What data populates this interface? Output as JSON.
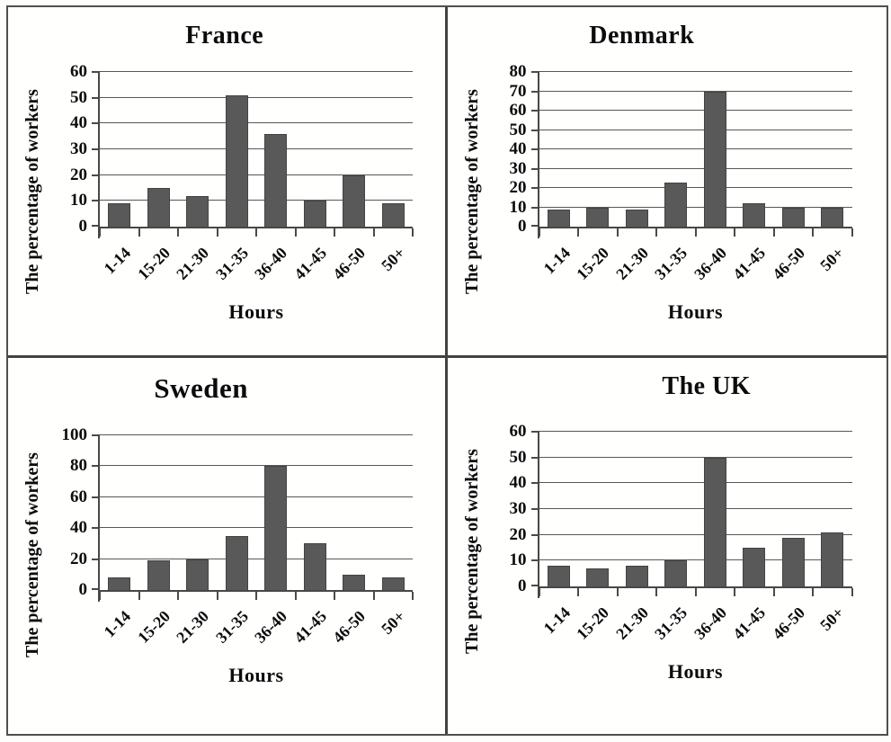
{
  "palette": {
    "bar_color": "#595959",
    "grid_color": "#575757",
    "axis_color": "#474747",
    "frame_color": "#4f4f4f",
    "text_color": "#0c0c0c",
    "background": "#fffffe"
  },
  "chart_data": [
    {
      "type": "bar",
      "title": "France",
      "xlabel": "Hours",
      "ylabel": "The percentage of workers",
      "categories": [
        "1-14",
        "15-20",
        "21-30",
        "31-35",
        "36-40",
        "41-45",
        "46-50",
        "50+"
      ],
      "values": [
        9,
        15,
        12,
        51,
        36,
        10,
        20,
        9
      ],
      "ylim": [
        0,
        60
      ],
      "yticks": [
        0,
        10,
        20,
        30,
        40,
        50,
        60
      ],
      "grid": true,
      "legend": false
    },
    {
      "type": "bar",
      "title": "Denmark",
      "xlabel": "Hours",
      "ylabel": "The percentage of workers",
      "categories": [
        "1-14",
        "15-20",
        "21-30",
        "31-35",
        "36-40",
        "41-45",
        "46-50",
        "50+"
      ],
      "values": [
        9,
        10,
        9,
        23,
        70,
        12,
        10,
        10
      ],
      "ylim": [
        0,
        80
      ],
      "yticks": [
        0,
        10,
        20,
        30,
        40,
        50,
        60,
        70,
        80
      ],
      "grid": true,
      "legend": false
    },
    {
      "type": "bar",
      "title": "Sweden",
      "xlabel": "Hours",
      "ylabel": "The percentage of workers",
      "categories": [
        "1-14",
        "15-20",
        "21-30",
        "31-35",
        "36-40",
        "41-45",
        "46-50",
        "50+"
      ],
      "values": [
        8,
        19,
        20,
        35,
        80,
        30,
        10,
        8
      ],
      "ylim": [
        0,
        100
      ],
      "yticks": [
        0,
        20,
        40,
        60,
        80,
        100
      ],
      "grid": true,
      "legend": false
    },
    {
      "type": "bar",
      "title": "The UK",
      "xlabel": "Hours",
      "ylabel": "The percentage of workers",
      "categories": [
        "1-14",
        "15-20",
        "21-30",
        "31-35",
        "36-40",
        "41-45",
        "46-50",
        "50+"
      ],
      "values": [
        8,
        7,
        8,
        10,
        50,
        15,
        19,
        21
      ],
      "ylim": [
        0,
        60
      ],
      "yticks": [
        0,
        10,
        20,
        30,
        40,
        50,
        60
      ],
      "grid": true,
      "legend": false
    }
  ]
}
